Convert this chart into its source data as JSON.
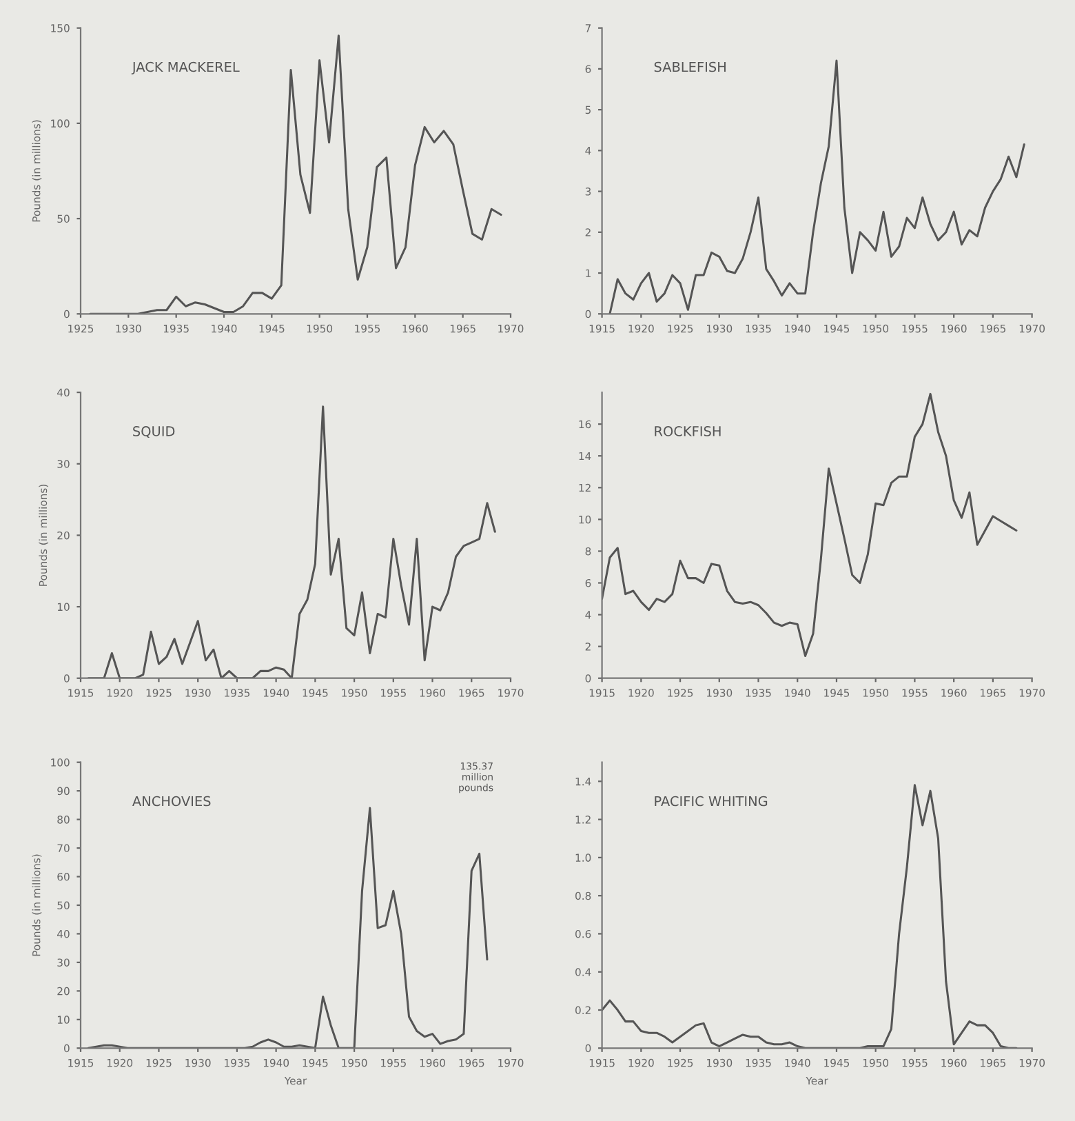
{
  "chart_data": [
    {
      "type": "line",
      "title": "JACK MACKEREL",
      "ylabel": "Pounds (in millions)",
      "color": "#555555",
      "x": [
        1926,
        1927,
        1928,
        1929,
        1930,
        1931,
        1932,
        1933,
        1934,
        1935,
        1936,
        1937,
        1938,
        1939,
        1940,
        1941,
        1942,
        1943,
        1944,
        1945,
        1946,
        1947,
        1948,
        1949,
        1950,
        1951,
        1952,
        1953,
        1954,
        1955,
        1956,
        1957,
        1958,
        1959,
        1960,
        1961,
        1962,
        1963,
        1964,
        1965,
        1966,
        1967,
        1968,
        1969
      ],
      "values": [
        0,
        0,
        0,
        0,
        0,
        0,
        1,
        2,
        2,
        9,
        4,
        6,
        5,
        3,
        1,
        1,
        4,
        11,
        11,
        8,
        15,
        128,
        73,
        53,
        133,
        90,
        146,
        55,
        18,
        35,
        77,
        82,
        24,
        35,
        78,
        98,
        90,
        96,
        89,
        65,
        42,
        39,
        55,
        52
      ],
      "xlim": [
        1925,
        1970
      ],
      "xticks": [
        1925,
        1930,
        1935,
        1940,
        1945,
        1950,
        1955,
        1960,
        1965,
        1970
      ],
      "ylim": [
        0,
        150
      ],
      "yticks": [
        0,
        50,
        100,
        150
      ],
      "grid": false,
      "marker": "none",
      "line_style": "solid"
    },
    {
      "type": "line",
      "title": "SABLEFISH",
      "color": "#555555",
      "x": [
        1916,
        1917,
        1918,
        1919,
        1920,
        1921,
        1922,
        1923,
        1924,
        1925,
        1926,
        1927,
        1928,
        1929,
        1930,
        1931,
        1932,
        1933,
        1934,
        1935,
        1936,
        1937,
        1938,
        1939,
        1940,
        1941,
        1942,
        1943,
        1944,
        1945,
        1946,
        1947,
        1948,
        1949,
        1950,
        1951,
        1952,
        1953,
        1954,
        1955,
        1956,
        1957,
        1958,
        1959,
        1960,
        1961,
        1962,
        1963,
        1964,
        1965,
        1966,
        1967,
        1968,
        1969
      ],
      "values": [
        0,
        0.85,
        0.5,
        0.35,
        0.75,
        1.0,
        0.3,
        0.5,
        0.95,
        0.75,
        0.1,
        0.95,
        0.95,
        1.5,
        1.4,
        1.05,
        1.0,
        1.35,
        2.0,
        2.85,
        1.1,
        0.8,
        0.45,
        0.75,
        0.5,
        0.5,
        2.0,
        3.2,
        4.1,
        6.2,
        2.6,
        1.0,
        2.0,
        1.8,
        1.55,
        2.5,
        1.4,
        1.65,
        2.35,
        2.1,
        2.85,
        2.2,
        1.8,
        2.0,
        2.5,
        1.7,
        2.05,
        1.9,
        2.6,
        3.0,
        3.3,
        3.85,
        3.35,
        4.15
      ],
      "xlim": [
        1915,
        1970
      ],
      "xticks": [
        1915,
        1920,
        1925,
        1930,
        1935,
        1940,
        1945,
        1950,
        1955,
        1960,
        1965,
        1970
      ],
      "ylim": [
        0,
        7
      ],
      "yticks": [
        0,
        1,
        2,
        3,
        4,
        5,
        6,
        7
      ],
      "grid": false,
      "marker": "none",
      "line_style": "solid"
    },
    {
      "type": "line",
      "title": "SQUID",
      "ylabel": "Pounds (in millions)",
      "color": "#555555",
      "x": [
        1916,
        1917,
        1918,
        1919,
        1920,
        1921,
        1922,
        1923,
        1924,
        1925,
        1926,
        1927,
        1928,
        1929,
        1930,
        1931,
        1932,
        1933,
        1934,
        1935,
        1936,
        1937,
        1938,
        1939,
        1940,
        1941,
        1942,
        1943,
        1944,
        1945,
        1946,
        1947,
        1948,
        1949,
        1950,
        1951,
        1952,
        1953,
        1954,
        1955,
        1956,
        1957,
        1958,
        1959,
        1960,
        1961,
        1962,
        1963,
        1964,
        1965,
        1966,
        1967,
        1968
      ],
      "values": [
        0,
        0,
        0,
        3.5,
        0,
        0,
        0,
        0.5,
        6.5,
        2,
        3,
        5.5,
        2,
        5,
        8,
        2.5,
        4,
        0,
        1,
        0,
        0,
        0,
        1,
        1,
        1.5,
        1.2,
        0,
        9,
        11,
        16,
        38,
        14.5,
        19.5,
        7,
        6,
        12,
        3.5,
        9,
        8.5,
        19.5,
        13,
        7.5,
        19.5,
        2.5,
        10,
        9.5,
        12,
        17,
        18.5,
        19,
        19.5,
        24.5,
        20.5
      ],
      "xlim": [
        1915,
        1970
      ],
      "xticks": [
        1915,
        1920,
        1925,
        1930,
        1935,
        1940,
        1945,
        1950,
        1955,
        1960,
        1965,
        1970
      ],
      "ylim": [
        0,
        40
      ],
      "yticks": [
        0,
        10,
        20,
        30,
        40
      ],
      "grid": false,
      "marker": "none",
      "line_style": "solid"
    },
    {
      "type": "line",
      "title": "ROCKFISH",
      "color": "#555555",
      "x": [
        1915,
        1916,
        1917,
        1918,
        1919,
        1920,
        1921,
        1922,
        1923,
        1924,
        1925,
        1926,
        1927,
        1928,
        1929,
        1930,
        1931,
        1932,
        1933,
        1934,
        1935,
        1936,
        1937,
        1938,
        1939,
        1940,
        1941,
        1942,
        1943,
        1944,
        1945,
        1946,
        1947,
        1948,
        1949,
        1950,
        1951,
        1952,
        1953,
        1954,
        1955,
        1956,
        1957,
        1958,
        1959,
        1960,
        1961,
        1962,
        1963,
        1964,
        1965,
        1966,
        1967,
        1968
      ],
      "values": [
        5,
        7.6,
        8.2,
        5.3,
        5.5,
        4.8,
        4.3,
        5.0,
        4.8,
        5.3,
        7.4,
        6.3,
        6.3,
        6.0,
        7.2,
        7.1,
        5.5,
        4.8,
        4.7,
        4.8,
        4.6,
        4.1,
        3.5,
        3.3,
        3.5,
        3.4,
        1.4,
        2.8,
        7.5,
        13.2,
        11,
        8.8,
        6.5,
        6.0,
        7.8,
        11.0,
        10.9,
        12.3,
        12.7,
        12.7,
        15.2,
        16.0,
        17.9,
        15.5,
        14.0,
        11.2,
        10.1,
        11.7,
        8.4,
        9.3,
        10.2,
        9.9,
        9.6,
        9.3
      ],
      "xlim": [
        1915,
        1970
      ],
      "xticks": [
        1915,
        1920,
        1925,
        1930,
        1935,
        1940,
        1945,
        1950,
        1955,
        1960,
        1965,
        1970
      ],
      "ylim": [
        0,
        18
      ],
      "yticks": [
        0,
        2,
        4,
        6,
        8,
        10,
        12,
        14,
        16
      ],
      "grid": false,
      "marker": "none",
      "line_style": "solid"
    },
    {
      "type": "line",
      "title": "ANCHOVIES",
      "ylabel": "Pounds (in millions)",
      "xlabel": "Year",
      "color": "#555555",
      "x": [
        1916,
        1917,
        1918,
        1919,
        1920,
        1921,
        1922,
        1923,
        1924,
        1925,
        1926,
        1927,
        1928,
        1929,
        1930,
        1931,
        1932,
        1933,
        1934,
        1935,
        1936,
        1937,
        1938,
        1939,
        1940,
        1941,
        1942,
        1943,
        1944,
        1945,
        1946,
        1947,
        1948,
        1949,
        1950,
        1951,
        1952,
        1953,
        1954,
        1955,
        1956,
        1957,
        1958,
        1959,
        1960,
        1961,
        1962,
        1963,
        1964,
        1965,
        1966,
        1967
      ],
      "values": [
        0,
        0.5,
        1,
        1,
        0.5,
        0,
        0,
        0,
        0,
        0,
        0,
        0,
        0,
        0,
        0,
        0,
        0,
        0,
        0,
        0,
        0,
        0.5,
        2,
        3,
        2,
        0.5,
        0.5,
        1,
        0.5,
        0,
        18,
        8,
        0,
        0,
        0,
        55,
        84,
        42,
        43,
        55,
        40,
        11,
        6,
        4,
        5,
        1.5,
        2.5,
        3,
        5,
        62,
        68,
        31
      ],
      "annotations": [
        "135.37\nmillion\npounds"
      ],
      "xlim": [
        1915,
        1970
      ],
      "xticks": [
        1915,
        1920,
        1925,
        1930,
        1935,
        1940,
        1945,
        1950,
        1955,
        1960,
        1965,
        1970
      ],
      "ylim": [
        0,
        100
      ],
      "yticks": [
        0,
        10,
        20,
        30,
        40,
        50,
        60,
        70,
        80,
        90,
        100
      ],
      "grid": false,
      "marker": "none",
      "line_style": "solid"
    },
    {
      "type": "line",
      "title": "PACIFIC WHITING",
      "xlabel": "Year",
      "color": "#555555",
      "x": [
        1915,
        1916,
        1917,
        1918,
        1919,
        1920,
        1921,
        1922,
        1923,
        1924,
        1925,
        1926,
        1927,
        1928,
        1929,
        1930,
        1931,
        1932,
        1933,
        1934,
        1935,
        1936,
        1937,
        1938,
        1939,
        1940,
        1941,
        1942,
        1943,
        1944,
        1945,
        1946,
        1947,
        1948,
        1949,
        1950,
        1951,
        1952,
        1953,
        1954,
        1955,
        1956,
        1957,
        1958,
        1959,
        1960,
        1961,
        1962,
        1963,
        1964,
        1965,
        1966,
        1967,
        1968
      ],
      "values": [
        0.2,
        0.25,
        0.2,
        0.14,
        0.14,
        0.09,
        0.08,
        0.08,
        0.06,
        0.03,
        0.06,
        0.09,
        0.12,
        0.13,
        0.03,
        0.01,
        0.03,
        0.05,
        0.07,
        0.06,
        0.06,
        0.03,
        0.02,
        0.02,
        0.03,
        0.01,
        0,
        0,
        0,
        0,
        0,
        0,
        0,
        0,
        0.01,
        0.01,
        0.01,
        0.1,
        0.6,
        0.95,
        1.38,
        1.17,
        1.35,
        1.1,
        0.35,
        0.02,
        0.08,
        0.14,
        0.12,
        0.12,
        0.08,
        0.01,
        0,
        0
      ],
      "xlim": [
        1915,
        1970
      ],
      "xticks": [
        1915,
        1920,
        1925,
        1930,
        1935,
        1940,
        1945,
        1950,
        1955,
        1960,
        1965,
        1970
      ],
      "ylim": [
        0,
        1.5
      ],
      "yticks": [
        0,
        0.2,
        0.4,
        0.6,
        0.8,
        {
          "value": 1.0,
          "label": "1.0"
        },
        1.2,
        1.4
      ],
      "grid": false,
      "marker": "none",
      "line_style": "solid"
    }
  ]
}
